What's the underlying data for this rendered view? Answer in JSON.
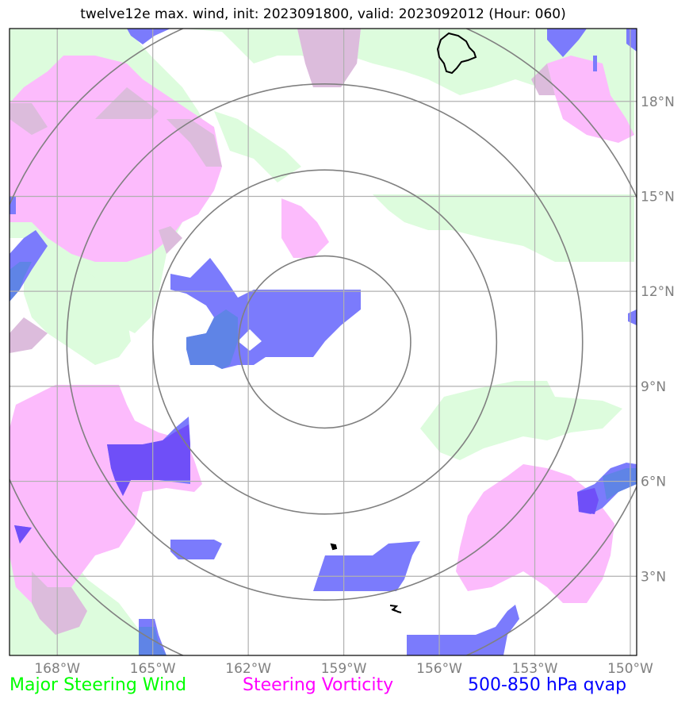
{
  "title": "twelve12e max. wind, init: 2023091800, valid: 2023092012 (Hour: 060)",
  "map": {
    "lon_range": [
      -169.5,
      -149.8
    ],
    "lat_range": [
      0.5,
      20.3
    ],
    "lon_ticks": [
      {
        "lon": -168,
        "label": "168°W"
      },
      {
        "lon": -165,
        "label": "165°W"
      },
      {
        "lon": -162,
        "label": "162°W"
      },
      {
        "lon": -159,
        "label": "159°W"
      },
      {
        "lon": -156,
        "label": "156°W"
      },
      {
        "lon": -153,
        "label": "153°W"
      },
      {
        "lon": -150,
        "label": "150°W"
      }
    ],
    "lat_ticks": [
      {
        "lat": 18,
        "label": "18°N"
      },
      {
        "lat": 15,
        "label": "15°N"
      },
      {
        "lat": 12,
        "label": "12°N"
      },
      {
        "lat": 9,
        "label": "9°N"
      },
      {
        "lat": 6,
        "label": "6°N"
      },
      {
        "lat": 3,
        "label": "3°N"
      }
    ],
    "circle_center": {
      "lon": -159.6,
      "lat": 10.4
    },
    "circle_radii_deg": [
      2.7,
      5.4,
      8.1,
      10.8
    ],
    "colors": {
      "wind": "#ddfcdd",
      "vorticity": "#fcbbfc",
      "qvap": "#7b7bfc",
      "overlap_vort_wind": "#dcbcdc",
      "overlap_qvap_vort": "#6f4ff8",
      "overlap_qvap_wind": "#5f84e6",
      "grid": "#b0b0b0",
      "circle": "#808080",
      "coast": "#000000"
    }
  },
  "legend": [
    {
      "label": "Major Steering Wind",
      "color": "#00ff00"
    },
    {
      "label": "Steering Vorticity",
      "color": "#ff00ff"
    },
    {
      "label": "500-850 hPa qvap",
      "color": "#0000ff"
    }
  ]
}
